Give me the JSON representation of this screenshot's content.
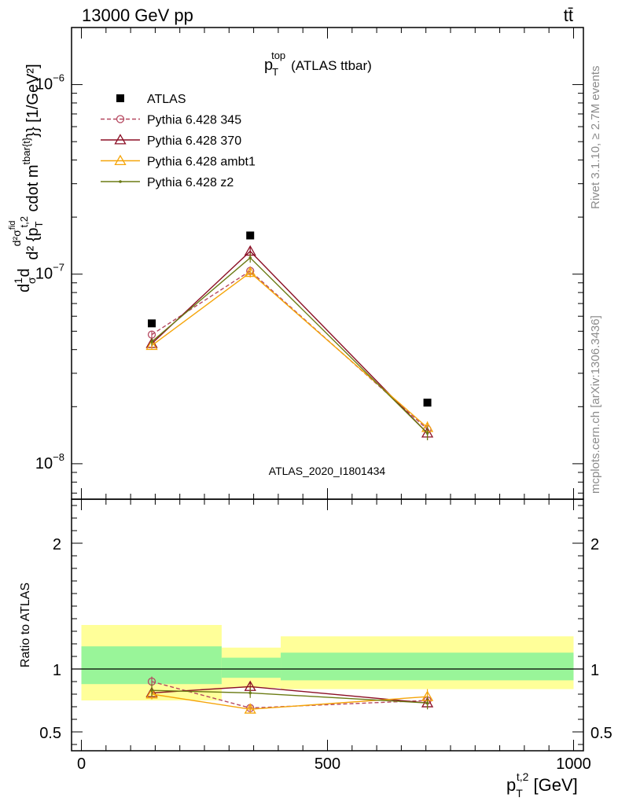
{
  "header": {
    "energy_label": "13000 GeV pp",
    "process_label": "tt̄"
  },
  "side": {
    "rivet_label": "Rivet 3.1.10, ≥ 2.7M events",
    "mcplots_label": "mcplots.cern.ch [arXiv:1306.3436]"
  },
  "chart_data": [
    {
      "type": "line",
      "panel": "main",
      "title_main": "p",
      "title_sub": "T",
      "title_sup": "top",
      "title_rest": "(ATLAS ttbar)",
      "watermark": "ATLAS_2020_I1801434",
      "ylabel": "d²σ/dp_T d²{p_T^{t,2} cdot m^{tbar{t}}} [1/GeV²]",
      "ylabel_parts": {
        "frac_prefix": "d",
        "frac_num": "1",
        "frac_den": "σ",
        "d": "d",
        "num": "d²σ",
        "num_sup": "fid",
        "den_main": "d² {p",
        "den_sub": "T",
        "den_sup": "t,2",
        "den_mid": " cdot m",
        "den_sup2": "tbar{t}",
        "den_end": "}}",
        "unit": " [1/GeV²]"
      },
      "yscale": "log",
      "ylim": [
        6.5e-09,
        2e-06
      ],
      "yticks": [
        1e-08,
        1e-07,
        1e-06
      ],
      "ytick_labels": [
        {
          "base": "10",
          "exp": "−8"
        },
        {
          "base": "10",
          "exp": "−7"
        },
        {
          "base": "10",
          "exp": "−6"
        }
      ],
      "xlim": [
        -20,
        1020
      ],
      "legend_position": "top-left",
      "legend": [
        {
          "name": "ATLAS",
          "color": "#000000",
          "marker": "square",
          "dash": "none"
        },
        {
          "name": "Pythia 6.428 345",
          "color": "#b5475f",
          "marker": "circle",
          "dash": "dashed"
        },
        {
          "name": "Pythia 6.428 370",
          "color": "#8b0f25",
          "marker": "triangle",
          "dash": "solid"
        },
        {
          "name": "Pythia 6.428 ambt1",
          "color": "#f5a50a",
          "marker": "triangle",
          "dash": "solid"
        },
        {
          "name": "Pythia 6.428 z2",
          "color": "#6b7b14",
          "marker": "dot",
          "dash": "solid"
        }
      ],
      "x": [
        143,
        343,
        703
      ],
      "series": [
        {
          "name": "ATLAS",
          "values": [
            5.5e-08,
            1.6e-07,
            2.1e-08
          ],
          "errors": [
            0,
            0,
            0
          ]
        },
        {
          "name": "Pythia 6.428 345",
          "values": [
            4.8e-08,
            1.04e-07,
            1.52e-08
          ],
          "errors": [
            2e-09,
            6e-09,
            1.2e-09
          ]
        },
        {
          "name": "Pythia 6.428 370",
          "values": [
            4.3e-08,
            1.32e-07,
            1.45e-08
          ],
          "errors": [
            2e-09,
            8e-09,
            1.2e-09
          ]
        },
        {
          "name": "Pythia 6.428 ambt1",
          "values": [
            4.2e-08,
            1.02e-07,
            1.55e-08
          ],
          "errors": [
            2e-09,
            6e-09,
            1.2e-09
          ]
        },
        {
          "name": "Pythia 6.428 z2",
          "values": [
            4.4e-08,
            1.22e-07,
            1.45e-08
          ],
          "errors": [
            2e-09,
            7e-09,
            1.2e-09
          ]
        }
      ]
    },
    {
      "type": "line",
      "panel": "ratio",
      "ylabel": "Ratio to ATLAS",
      "ylim": [
        0.35,
        2.35
      ],
      "yticks": [
        0.5,
        1,
        2
      ],
      "ytick_labels": [
        "0.5",
        "1",
        "2"
      ],
      "xlim": [
        -20,
        1020
      ],
      "xticks": [
        0,
        500,
        1000
      ],
      "xtick_labels": [
        "0",
        "500",
        "1000"
      ],
      "xlabel_main": "p",
      "xlabel_sub": "T",
      "xlabel_sup": "t,2",
      "xlabel_unit": " [GeV]",
      "bands": [
        {
          "x0": 0,
          "x1": 285,
          "yellow": [
            0.75,
            1.35
          ],
          "green": [
            0.88,
            1.18
          ]
        },
        {
          "x0": 285,
          "x1": 405,
          "yellow": [
            0.85,
            1.17
          ],
          "green": [
            0.93,
            1.09
          ]
        },
        {
          "x0": 405,
          "x1": 1000,
          "yellow": [
            0.84,
            1.26
          ],
          "green": [
            0.91,
            1.13
          ]
        }
      ],
      "band_colors": {
        "yellow": "#ffff99",
        "green": "#99f599"
      },
      "x": [
        143,
        343,
        703
      ],
      "series": [
        {
          "name": "Pythia 6.428 345",
          "values": [
            0.9,
            0.69,
            0.75
          ],
          "errors": [
            0.04,
            0.03,
            0.05
          ]
        },
        {
          "name": "Pythia 6.428 370",
          "values": [
            0.81,
            0.86,
            0.73
          ],
          "errors": [
            0.05,
            0.04,
            0.05
          ]
        },
        {
          "name": "Pythia 6.428 ambt1",
          "values": [
            0.8,
            0.68,
            0.78
          ],
          "errors": [
            0.04,
            0.03,
            0.06
          ]
        },
        {
          "name": "Pythia 6.428 z2",
          "values": [
            0.83,
            0.81,
            0.73
          ],
          "errors": [
            0.05,
            0.04,
            0.05
          ]
        }
      ]
    }
  ]
}
